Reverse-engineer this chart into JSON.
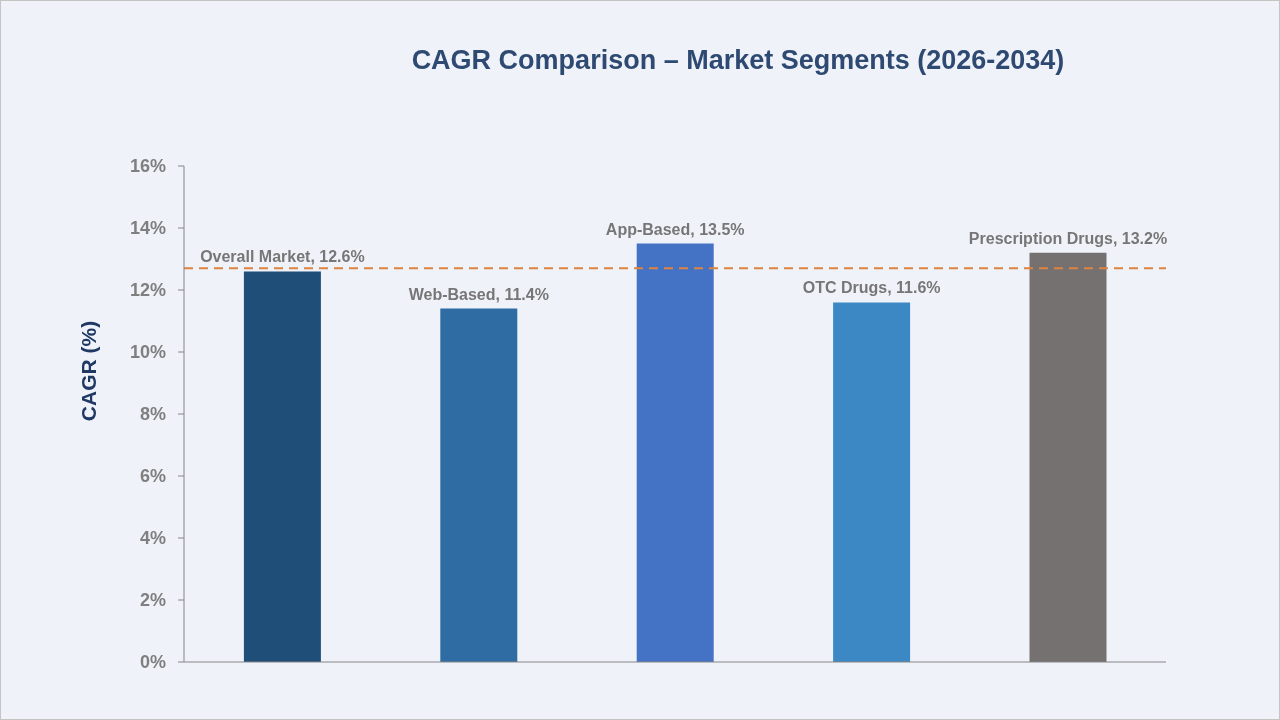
{
  "chart_data": {
    "type": "bar",
    "title": "CAGR Comparison – Market Segments (2026-2034)",
    "ylabel": "CAGR (%)",
    "categories": [
      null,
      null,
      null,
      null,
      null
    ],
    "values": [
      12.6,
      11.4,
      13.5,
      11.6,
      13.2
    ],
    "colors": [
      "#1f4e78",
      "#2e6ca3",
      "#4472c4",
      "#3b88c4",
      "#757171"
    ],
    "value_labels": [
      "Overall Market, 12.6%",
      "Web-Based, 11.4%",
      "App-Based, 13.5%",
      "OTC Drugs, 11.6%",
      "Prescription Drugs, 13.2%"
    ],
    "ylim": [
      0,
      16
    ],
    "yticks": [
      {
        "value": 0,
        "label": "0%"
      },
      {
        "value": 2,
        "label": "2%"
      },
      {
        "value": 4,
        "label": "4%"
      },
      {
        "value": 6,
        "label": "6%"
      },
      {
        "value": 8,
        "label": "8%"
      },
      {
        "value": 10,
        "label": "10%"
      },
      {
        "value": 12,
        "label": "12%"
      },
      {
        "value": 14,
        "label": "14%"
      },
      {
        "value": 16,
        "label": "16%"
      }
    ],
    "ref_lines": [
      {
        "axis": "y",
        "value": 12.7,
        "color": "#e0833f",
        "line_style": "dashed"
      }
    ],
    "tick_labels": "y"
  }
}
